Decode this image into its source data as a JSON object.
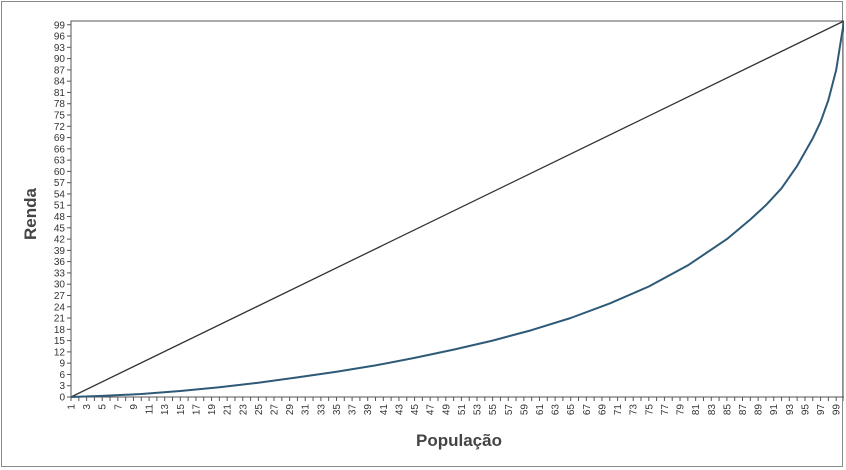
{
  "chart_data": {
    "type": "line",
    "title": "",
    "xlabel": "População",
    "ylabel": "Renda",
    "xlim": [
      1,
      100
    ],
    "ylim": [
      0,
      100
    ],
    "x_ticks": [
      1,
      3,
      5,
      7,
      9,
      11,
      13,
      15,
      17,
      19,
      21,
      23,
      25,
      27,
      29,
      31,
      33,
      35,
      37,
      39,
      41,
      43,
      45,
      47,
      49,
      51,
      53,
      55,
      57,
      59,
      61,
      63,
      65,
      67,
      69,
      71,
      73,
      75,
      77,
      79,
      81,
      83,
      85,
      87,
      89,
      91,
      93,
      95,
      97,
      99
    ],
    "y_ticks": [
      0,
      3,
      6,
      9,
      12,
      15,
      18,
      21,
      24,
      27,
      30,
      33,
      36,
      39,
      42,
      45,
      48,
      51,
      54,
      57,
      60,
      63,
      66,
      69,
      72,
      75,
      78,
      81,
      84,
      87,
      90,
      93,
      96,
      99
    ],
    "grid": false,
    "legend": "none",
    "series": [
      {
        "color": "#333333",
        "x": [
          1,
          100
        ],
        "y": [
          0,
          100
        ]
      },
      {
        "color": "#2e5a78",
        "x": [
          1,
          5,
          10,
          15,
          20,
          25,
          30,
          35,
          40,
          45,
          50,
          55,
          60,
          65,
          70,
          75,
          80,
          85,
          88,
          90,
          92,
          94,
          96,
          97,
          98,
          99,
          100
        ],
        "y": [
          0,
          0.3,
          0.8,
          1.6,
          2.6,
          3.8,
          5.2,
          6.7,
          8.4,
          10.4,
          12.6,
          15.0,
          17.8,
          21.0,
          24.9,
          29.4,
          35.0,
          42.0,
          47.2,
          51.0,
          55.5,
          61.5,
          68.8,
          73.2,
          79.0,
          87.0,
          100
        ]
      }
    ]
  }
}
